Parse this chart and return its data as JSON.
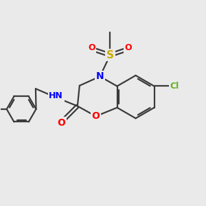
{
  "background_color": "#eaeaea",
  "atom_colors": {
    "C": "#3a3a3a",
    "N": "#0000ff",
    "O": "#ff0000",
    "S": "#ccaa00",
    "Cl": "#6ab020",
    "H": "#3a3a3a"
  },
  "bond_color": "#3a3a3a",
  "bond_width": 1.6,
  "figsize": [
    3.0,
    3.0
  ],
  "dpi": 100
}
